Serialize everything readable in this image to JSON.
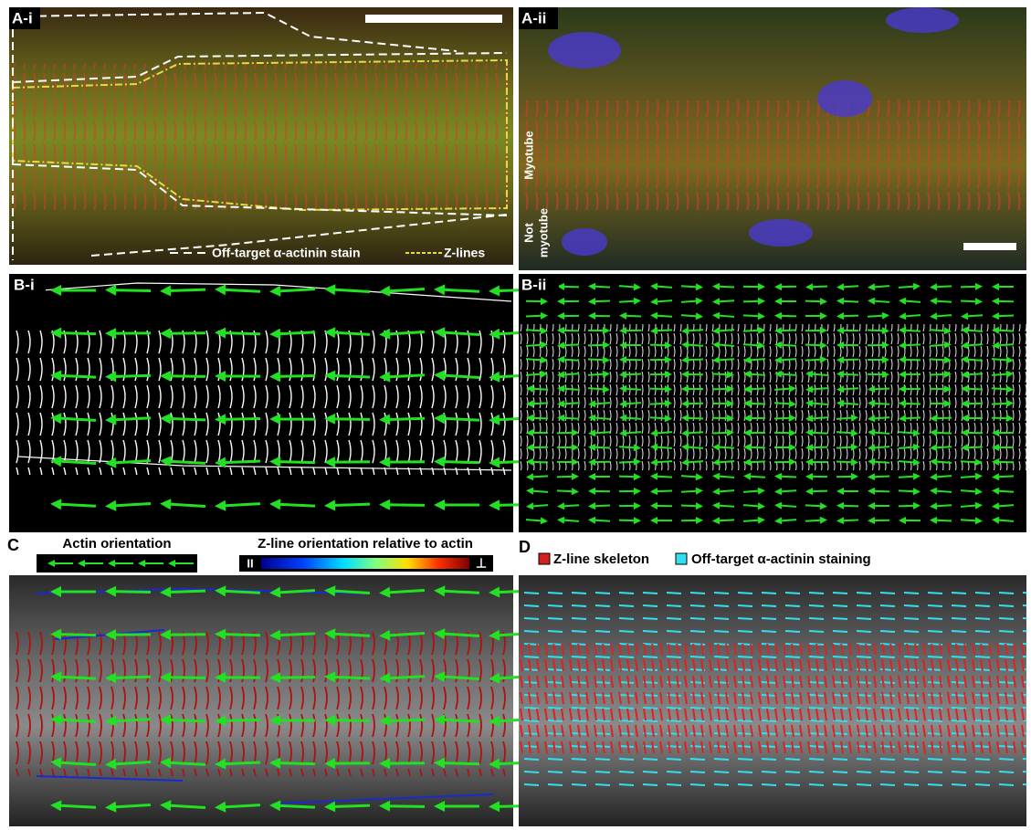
{
  "panel_a_i": {
    "label": "A-i",
    "legend_off_target": "Off-target α-actinin stain",
    "legend_z_lines": "Z-lines"
  },
  "panel_a_ii": {
    "label": "A-ii",
    "myotube": "Myotube",
    "not_myotube": [
      "Not",
      "myotube"
    ]
  },
  "panel_b_i": {
    "label": "B-i"
  },
  "panel_b_ii": {
    "label": "B-ii"
  },
  "panel_c": {
    "label": "C",
    "actin_legend": "Actin orientation",
    "colorbar_title": "Z-line orientation relative to actin",
    "colorbar_min": "II",
    "colorbar_max": "⊥"
  },
  "panel_d": {
    "label": "D",
    "legend_z_line": "Z-line skeleton",
    "legend_off_target": "Off-target α-actinin staining"
  }
}
